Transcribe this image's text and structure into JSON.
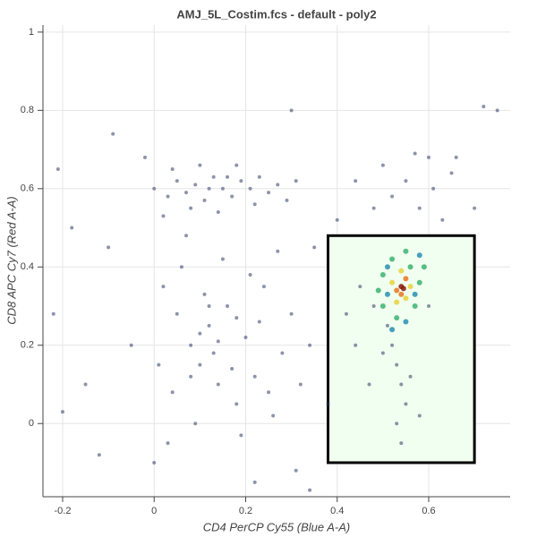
{
  "chart_data": {
    "type": "scatter",
    "title": "AMJ_5L_Costim.fcs - default - poly2",
    "x_label": "CD4 PerCP Cy55 (Blue A-A)",
    "y_label": "CD8 APC Cy7 (Red A-A)",
    "xlim": [
      -0.243,
      0.778
    ],
    "ylim": [
      -0.187,
      1.018
    ],
    "xticks": [
      -0.2,
      0,
      0.2,
      0.4,
      0.6
    ],
    "yticks": [
      0,
      0.2,
      0.4,
      0.6,
      0.8,
      1
    ],
    "grid": true,
    "gate": {
      "x": [
        0.38,
        0.7
      ],
      "y": [
        -0.1,
        0.48
      ],
      "color": "#f0fff0"
    },
    "series": [
      {
        "color": "#2f3b66",
        "x": [
          0.0,
          0.03,
          0.05,
          0.07,
          0.09,
          0.11,
          0.13,
          0.15,
          0.17,
          0.19,
          0.21,
          0.23,
          0.25,
          0.27,
          0.04,
          0.1,
          0.18,
          0.08,
          0.14,
          0.22,
          0.29,
          0.31,
          0.02,
          0.12,
          0.16,
          0.02,
          0.05,
          0.08,
          0.1,
          0.12,
          0.14,
          0.16,
          0.18,
          0.2,
          0.22,
          0.24,
          0.26,
          0.28,
          0.3,
          0.04,
          0.06,
          0.09,
          0.11,
          0.13,
          0.15,
          0.17,
          0.19,
          0.21,
          0.23,
          0.25,
          0.27,
          0.01,
          0.03,
          0.07,
          0.32,
          0.34,
          0.1,
          0.14,
          0.12,
          0.18,
          0.08,
          0.52,
          0.55,
          0.58,
          0.61,
          0.63,
          0.5,
          0.57,
          0.65,
          0.48,
          0.6,
          -0.22,
          -0.2,
          -0.15,
          -0.1,
          -0.05,
          -0.18,
          -0.21,
          -0.09,
          0.3,
          0.72,
          0.75,
          0.66,
          0.7,
          0.35,
          0.38,
          0.31,
          0.22,
          0.34,
          0.0,
          -0.12,
          0.44,
          0.4,
          -0.02,
          0.52,
          0.53,
          0.54,
          0.55,
          0.53,
          0.54,
          0.51,
          0.5,
          0.56,
          0.48,
          0.45,
          0.42,
          0.47,
          0.58,
          0.44,
          0.6
        ],
        "values": [
          0.6,
          0.58,
          0.62,
          0.59,
          0.61,
          0.57,
          0.63,
          0.6,
          0.58,
          0.62,
          0.6,
          0.63,
          0.59,
          0.61,
          0.65,
          0.66,
          0.66,
          0.55,
          0.54,
          0.56,
          0.57,
          0.62,
          0.53,
          0.6,
          0.63,
          0.35,
          0.28,
          0.2,
          0.15,
          0.25,
          0.1,
          0.3,
          0.05,
          0.22,
          0.12,
          0.35,
          0.02,
          0.18,
          0.28,
          0.08,
          0.4,
          0.0,
          0.33,
          0.18,
          0.42,
          0.14,
          -0.03,
          0.38,
          0.26,
          0.08,
          0.44,
          0.15,
          -0.05,
          0.48,
          0.1,
          0.2,
          0.23,
          0.21,
          0.3,
          0.27,
          0.12,
          0.58,
          0.62,
          0.55,
          0.6,
          0.52,
          0.66,
          0.69,
          0.64,
          0.55,
          0.68,
          0.28,
          0.03,
          0.1,
          0.45,
          0.2,
          0.5,
          0.65,
          0.74,
          0.8,
          0.81,
          0.8,
          0.68,
          0.55,
          0.45,
          0.05,
          -0.12,
          -0.15,
          -0.17,
          -0.1,
          -0.08,
          0.62,
          0.52,
          0.68,
          0.2,
          0.15,
          0.1,
          0.05,
          0.0,
          -0.05,
          0.25,
          0.18,
          0.12,
          0.3,
          0.35,
          0.28,
          0.1,
          0.02,
          0.2,
          0.3
        ]
      },
      {
        "color": "#2a8fb0",
        "x": [
          0.51,
          0.57,
          0.52,
          0.55,
          0.51,
          0.58
        ],
        "values": [
          0.33,
          0.33,
          0.24,
          0.26,
          0.4,
          0.43
        ]
      },
      {
        "color": "#3cb371",
        "x": [
          0.5,
          0.52,
          0.56,
          0.58,
          0.5,
          0.53,
          0.57,
          0.55,
          0.49,
          0.59
        ],
        "values": [
          0.38,
          0.42,
          0.4,
          0.36,
          0.3,
          0.27,
          0.3,
          0.44,
          0.34,
          0.4
        ]
      },
      {
        "color": "#e8d23a",
        "x": [
          0.52,
          0.54,
          0.56,
          0.53,
          0.55
        ],
        "values": [
          0.36,
          0.39,
          0.35,
          0.31,
          0.32
        ]
      },
      {
        "color": "#e8741e",
        "x": [
          0.53,
          0.55,
          0.54
        ],
        "values": [
          0.34,
          0.37,
          0.33
        ]
      },
      {
        "color": "#8b1a0a",
        "x": [
          0.54,
          0.545
        ],
        "values": [
          0.35,
          0.345
        ]
      }
    ]
  }
}
